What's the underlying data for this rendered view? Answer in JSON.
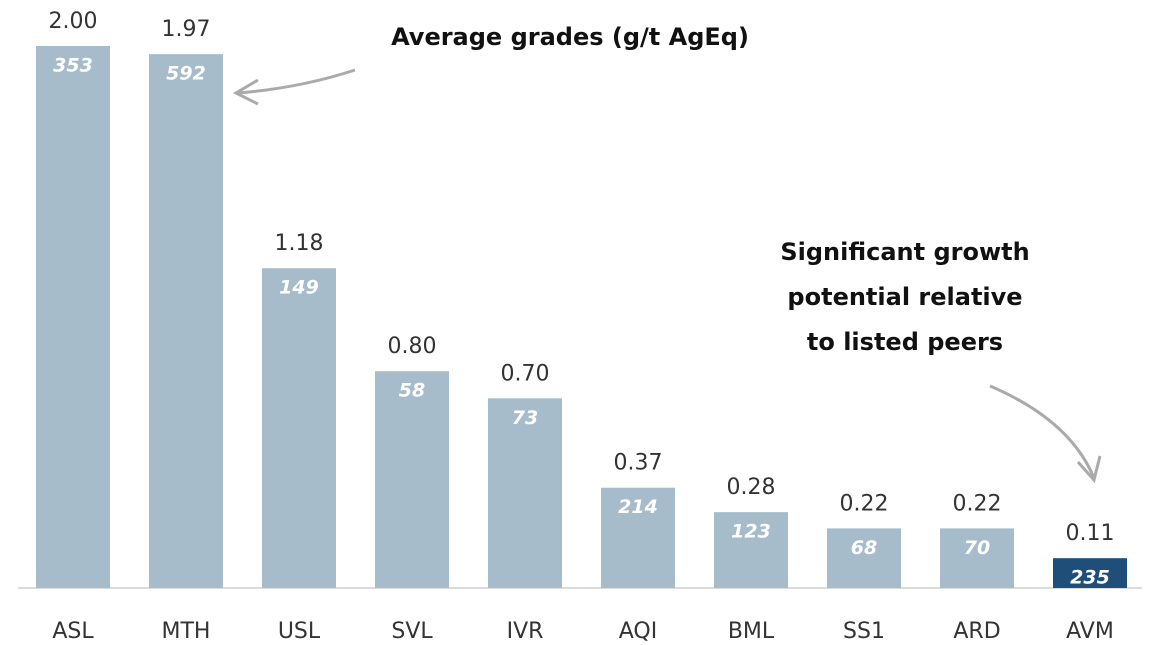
{
  "chart_data": {
    "type": "bar",
    "annotation": "Average grades (g/t AgEq)",
    "annotation_2": [
      "Significant growth",
      "potential relative",
      "to listed peers"
    ],
    "categories": [
      "ASL",
      "MTH",
      "USL",
      "SVL",
      "IVR",
      "AQI",
      "BML",
      "SS1",
      "ARD",
      "AVM"
    ],
    "values": [
      2.0,
      1.97,
      1.18,
      0.8,
      0.7,
      0.37,
      0.28,
      0.22,
      0.22,
      0.11
    ],
    "value_labels": [
      "2.00",
      "1.97",
      "1.18",
      "0.80",
      "0.70",
      "0.37",
      "0.28",
      "0.22",
      "0.22",
      "0.11"
    ],
    "grades": [
      353,
      592,
      149,
      58,
      73,
      214,
      123,
      68,
      70,
      235
    ],
    "colors": [
      "#a7bccb",
      "#a7bccb",
      "#a7bccb",
      "#a7bccb",
      "#a7bccb",
      "#a7bccb",
      "#a7bccb",
      "#a7bccb",
      "#a7bccb",
      "#1f4e79"
    ],
    "ylim": [
      0,
      2
    ]
  }
}
